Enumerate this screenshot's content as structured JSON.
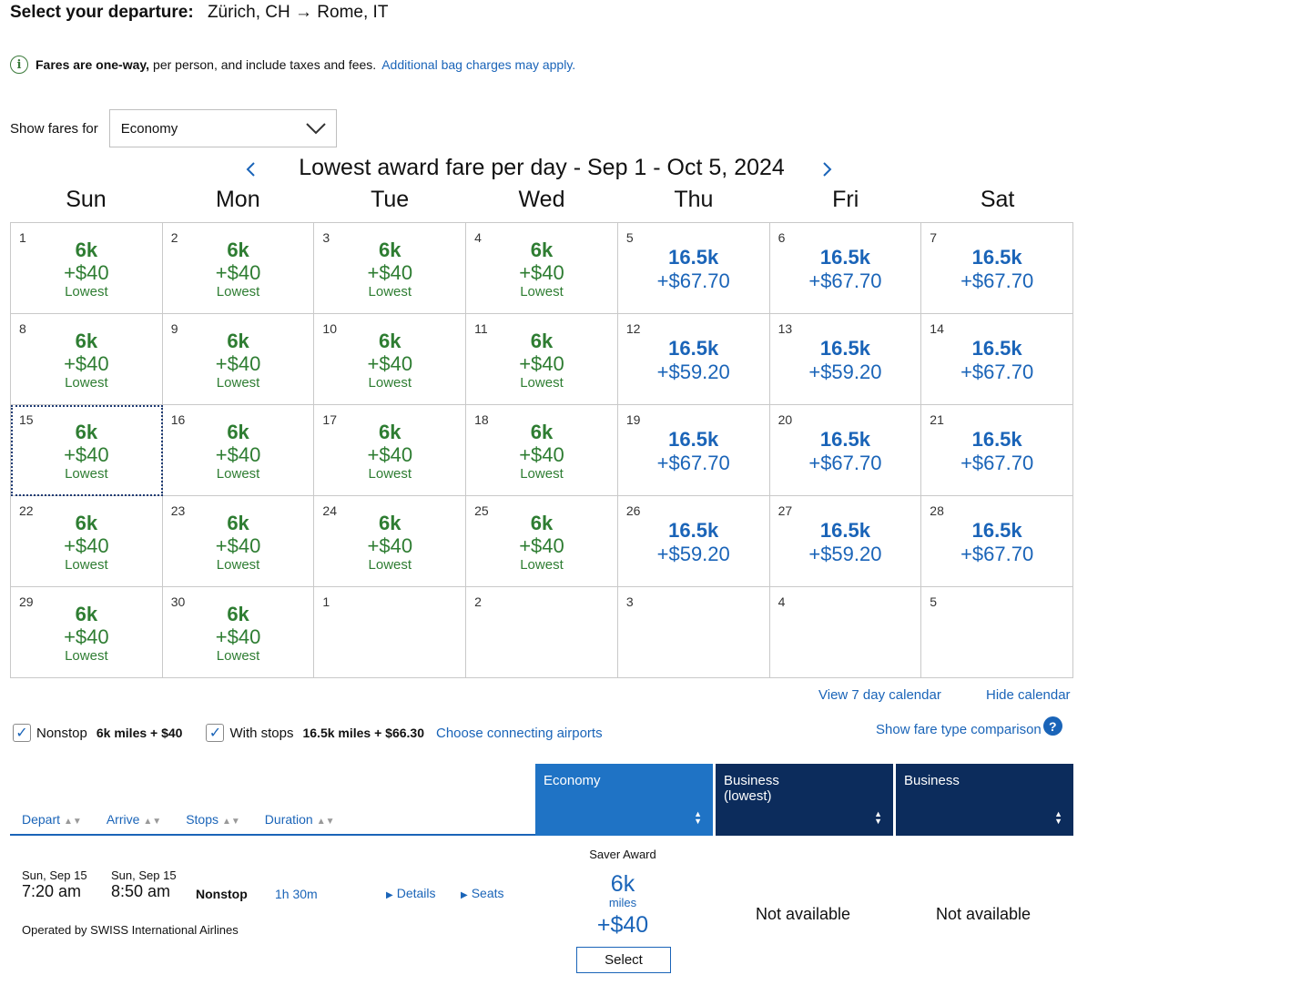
{
  "heading": {
    "label": "Select your departure:",
    "route": "Zürich, CH → Rome, IT"
  },
  "info": {
    "bold": "Fares are one-way,",
    "text": "per person, and include taxes and fees.",
    "link": "Additional bag charges may apply."
  },
  "fare_filter": {
    "label": "Show fares for",
    "value": "Economy"
  },
  "calendar": {
    "title": "Lowest award fare per day - Sep 1 - Oct 5, 2024",
    "days_of_week": [
      "Sun",
      "Mon",
      "Tue",
      "Wed",
      "Thu",
      "Fri",
      "Sat"
    ],
    "cells": [
      {
        "day": "1",
        "miles": "6k",
        "price": "+$40",
        "tag": "Lowest",
        "style": "green"
      },
      {
        "day": "2",
        "miles": "6k",
        "price": "+$40",
        "tag": "Lowest",
        "style": "green"
      },
      {
        "day": "3",
        "miles": "6k",
        "price": "+$40",
        "tag": "Lowest",
        "style": "green"
      },
      {
        "day": "4",
        "miles": "6k",
        "price": "+$40",
        "tag": "Lowest",
        "style": "green"
      },
      {
        "day": "5",
        "miles": "16.5k",
        "price": "+$67.70",
        "tag": "",
        "style": "blue"
      },
      {
        "day": "6",
        "miles": "16.5k",
        "price": "+$67.70",
        "tag": "",
        "style": "blue"
      },
      {
        "day": "7",
        "miles": "16.5k",
        "price": "+$67.70",
        "tag": "",
        "style": "blue"
      },
      {
        "day": "8",
        "miles": "6k",
        "price": "+$40",
        "tag": "Lowest",
        "style": "green"
      },
      {
        "day": "9",
        "miles": "6k",
        "price": "+$40",
        "tag": "Lowest",
        "style": "green"
      },
      {
        "day": "10",
        "miles": "6k",
        "price": "+$40",
        "tag": "Lowest",
        "style": "green"
      },
      {
        "day": "11",
        "miles": "6k",
        "price": "+$40",
        "tag": "Lowest",
        "style": "green"
      },
      {
        "day": "12",
        "miles": "16.5k",
        "price": "+$59.20",
        "tag": "",
        "style": "blue"
      },
      {
        "day": "13",
        "miles": "16.5k",
        "price": "+$59.20",
        "tag": "",
        "style": "blue"
      },
      {
        "day": "14",
        "miles": "16.5k",
        "price": "+$67.70",
        "tag": "",
        "style": "blue"
      },
      {
        "day": "15",
        "miles": "6k",
        "price": "+$40",
        "tag": "Lowest",
        "style": "green",
        "selected": true
      },
      {
        "day": "16",
        "miles": "6k",
        "price": "+$40",
        "tag": "Lowest",
        "style": "green"
      },
      {
        "day": "17",
        "miles": "6k",
        "price": "+$40",
        "tag": "Lowest",
        "style": "green"
      },
      {
        "day": "18",
        "miles": "6k",
        "price": "+$40",
        "tag": "Lowest",
        "style": "green"
      },
      {
        "day": "19",
        "miles": "16.5k",
        "price": "+$67.70",
        "tag": "",
        "style": "blue"
      },
      {
        "day": "20",
        "miles": "16.5k",
        "price": "+$67.70",
        "tag": "",
        "style": "blue"
      },
      {
        "day": "21",
        "miles": "16.5k",
        "price": "+$67.70",
        "tag": "",
        "style": "blue"
      },
      {
        "day": "22",
        "miles": "6k",
        "price": "+$40",
        "tag": "Lowest",
        "style": "green"
      },
      {
        "day": "23",
        "miles": "6k",
        "price": "+$40",
        "tag": "Lowest",
        "style": "green"
      },
      {
        "day": "24",
        "miles": "6k",
        "price": "+$40",
        "tag": "Lowest",
        "style": "green"
      },
      {
        "day": "25",
        "miles": "6k",
        "price": "+$40",
        "tag": "Lowest",
        "style": "green"
      },
      {
        "day": "26",
        "miles": "16.5k",
        "price": "+$59.20",
        "tag": "",
        "style": "blue"
      },
      {
        "day": "27",
        "miles": "16.5k",
        "price": "+$59.20",
        "tag": "",
        "style": "blue"
      },
      {
        "day": "28",
        "miles": "16.5k",
        "price": "+$67.70",
        "tag": "",
        "style": "blue"
      },
      {
        "day": "29",
        "miles": "6k",
        "price": "+$40",
        "tag": "Lowest",
        "style": "green"
      },
      {
        "day": "30",
        "miles": "6k",
        "price": "+$40",
        "tag": "Lowest",
        "style": "green"
      },
      {
        "day": "1",
        "miles": "",
        "price": "",
        "tag": "",
        "style": "empty"
      },
      {
        "day": "2",
        "miles": "",
        "price": "",
        "tag": "",
        "style": "empty"
      },
      {
        "day": "3",
        "miles": "",
        "price": "",
        "tag": "",
        "style": "empty"
      },
      {
        "day": "4",
        "miles": "",
        "price": "",
        "tag": "",
        "style": "empty"
      },
      {
        "day": "5",
        "miles": "",
        "price": "",
        "tag": "",
        "style": "empty"
      }
    ],
    "view7_label": "View 7 day calendar",
    "hide_label": "Hide calendar"
  },
  "filters": {
    "nonstop_label": "Nonstop",
    "nonstop_value": "6k miles + $40",
    "stops_label": "With stops",
    "stops_value": "16.5k miles + $66.30",
    "connecting_link": "Choose connecting airports",
    "compare_link": "Show fare type comparison"
  },
  "sort": {
    "depart": "Depart",
    "arrive": "Arrive",
    "stops": "Stops",
    "duration": "Duration"
  },
  "cabins": [
    {
      "line1": "Economy",
      "line2": "",
      "color": "#1f73c5"
    },
    {
      "line1": "Business",
      "line2": "(lowest)",
      "color": "#0c2c5c"
    },
    {
      "line1": "Business",
      "line2": "",
      "color": "#0c2c5c"
    }
  ],
  "flight": {
    "depart_date": "Sun, Sep 15",
    "depart_time": "7:20 am",
    "arrive_date": "Sun, Sep 15",
    "arrive_time": "8:50 am",
    "stops": "Nonstop",
    "duration": "1h 30m",
    "details_label": "Details",
    "seats_label": "Seats",
    "operator": "Operated by SWISS International Airlines",
    "award_type": "Saver Award",
    "award_miles": "6k",
    "award_unit": "miles",
    "award_price": "+$40",
    "select_label": "Select",
    "business_lowest": "Not available",
    "business": "Not available"
  },
  "colors": {
    "accent": "#1a64b8",
    "green": "#2e7d32",
    "navy": "#0c2c5c"
  }
}
